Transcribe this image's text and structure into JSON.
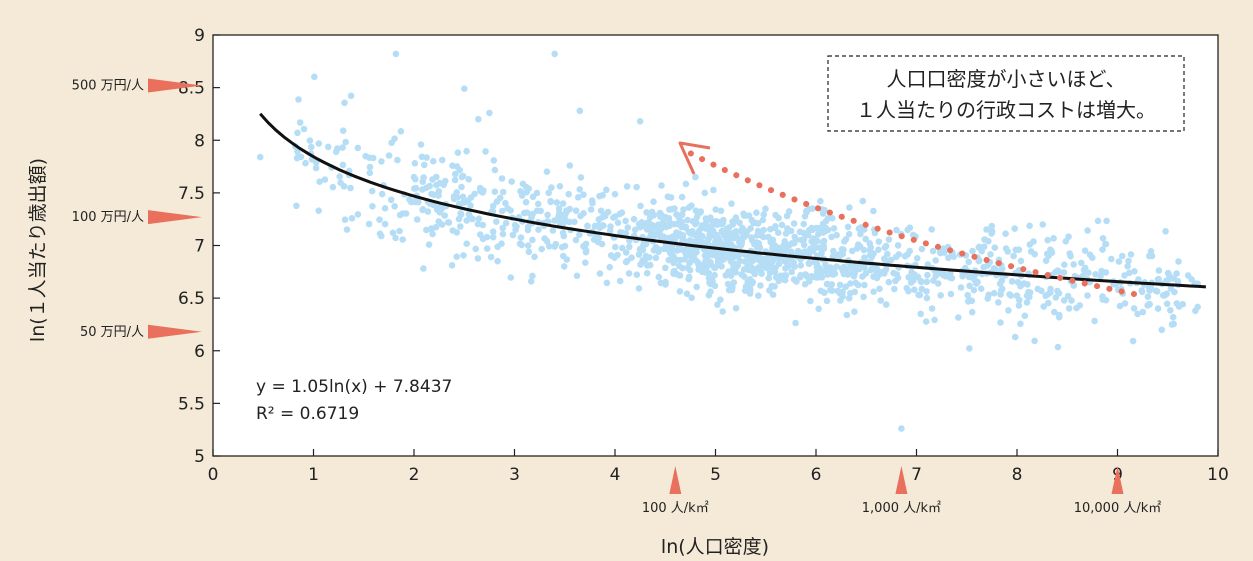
{
  "chart_data": {
    "type": "scatter",
    "xlabel": "ln(人口密度)",
    "ylabel": "ln(１人当たり歳出額)",
    "xlim": [
      0,
      10
    ],
    "ylim": [
      5,
      9
    ],
    "x_ticks": [
      0,
      1,
      2,
      3,
      4,
      5,
      6,
      7,
      8,
      9,
      10
    ],
    "y_ticks": [
      5,
      5.5,
      6,
      6.5,
      7,
      7.5,
      8,
      8.5,
      9
    ],
    "y_tick_labels": [
      "5",
      "5.5",
      "6",
      "6.5",
      "7",
      "7.5",
      "8",
      "8.5",
      "9"
    ],
    "grid": false,
    "point_color": "#b5def6",
    "trend": {
      "equation_label": "y = 1.05ln(x) + 7.8437",
      "r2_label": "R² = 0.6719",
      "x_from": 0.47,
      "x_to": 9.88,
      "color": "#111111"
    },
    "annotation": {
      "line1": "人口口密度が小さいほど、",
      "line2": "１人当たりの行政コストは増大。"
    },
    "arrow_color": "#e8705c",
    "y_markers": [
      {
        "label": "500 万円/人",
        "y": 8.52
      },
      {
        "label": "100 万円/人",
        "y": 7.27
      },
      {
        "label": "50 万円/人",
        "y": 6.18
      }
    ],
    "x_markers": [
      {
        "label": "100 人/k㎡",
        "x": 4.6
      },
      {
        "label": "1,000 人/k㎡",
        "x": 6.85
      },
      {
        "label": "10,000 人/k㎡",
        "x": 9.0
      }
    ],
    "points": [
      [
        0.47,
        7.84
      ],
      [
        1.82,
        8.82
      ],
      [
        3.4,
        8.82
      ],
      [
        2.5,
        8.49
      ],
      [
        2.75,
        8.26
      ],
      [
        2.64,
        8.2
      ],
      [
        3.65,
        8.28
      ],
      [
        4.25,
        8.18
      ],
      [
        2.07,
        7.96
      ],
      [
        1.29,
        7.93
      ],
      [
        3.55,
        7.76
      ],
      [
        4.8,
        7.65
      ],
      [
        8.3,
        6.92
      ],
      [
        9.32,
        6.44
      ],
      [
        9.2,
        6.35
      ],
      [
        6.85,
        5.26
      ]
    ],
    "cluster": {
      "count": 1500,
      "x_range": [
        0.8,
        9.8
      ],
      "spread": 0.21
    }
  }
}
